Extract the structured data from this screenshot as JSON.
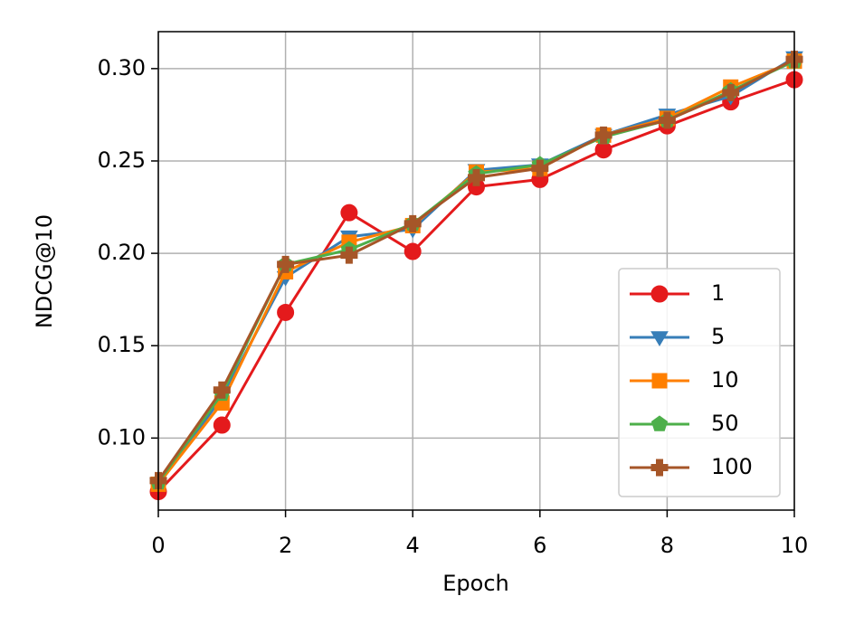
{
  "chart_data": {
    "type": "line",
    "x_label": "Epoch",
    "y_label": "NDCG@10",
    "x": [
      0,
      1,
      2,
      3,
      4,
      5,
      6,
      7,
      8,
      9,
      10
    ],
    "series": [
      {
        "name": "1",
        "color": "#e41a1c",
        "marker": "circle",
        "values": [
          0.071,
          0.107,
          0.168,
          0.222,
          0.201,
          0.236,
          0.24,
          0.256,
          0.269,
          0.282,
          0.294
        ]
      },
      {
        "name": "5",
        "color": "#377eb8",
        "marker": "triangle-down",
        "values": [
          0.075,
          0.122,
          0.187,
          0.209,
          0.213,
          0.245,
          0.248,
          0.264,
          0.275,
          0.285,
          0.306
        ]
      },
      {
        "name": "10",
        "color": "#ff7f00",
        "marker": "square",
        "values": [
          0.075,
          0.119,
          0.19,
          0.206,
          0.215,
          0.244,
          0.246,
          0.264,
          0.273,
          0.29,
          0.304
        ]
      },
      {
        "name": "50",
        "color": "#4daf4a",
        "marker": "pentagon",
        "values": [
          0.076,
          0.124,
          0.194,
          0.202,
          0.216,
          0.243,
          0.248,
          0.263,
          0.272,
          0.288,
          0.304
        ]
      },
      {
        "name": "100",
        "color": "#a65628",
        "marker": "plus",
        "values": [
          0.077,
          0.126,
          0.194,
          0.199,
          0.216,
          0.241,
          0.246,
          0.264,
          0.272,
          0.287,
          0.305
        ]
      }
    ],
    "xlim": [
      0,
      10
    ],
    "xticks": [
      0,
      2,
      4,
      6,
      8,
      10
    ],
    "ylim": [
      0.061,
      0.32
    ],
    "yticks": [
      {
        "value": 0.1,
        "label": "0.10"
      },
      {
        "value": 0.15,
        "label": "0.15"
      },
      {
        "value": 0.2,
        "label": "0.20"
      },
      {
        "value": 0.25,
        "label": "0.25"
      },
      {
        "value": 0.3,
        "label": "0.30"
      }
    ],
    "grid": true,
    "legend_position": "lower right"
  }
}
